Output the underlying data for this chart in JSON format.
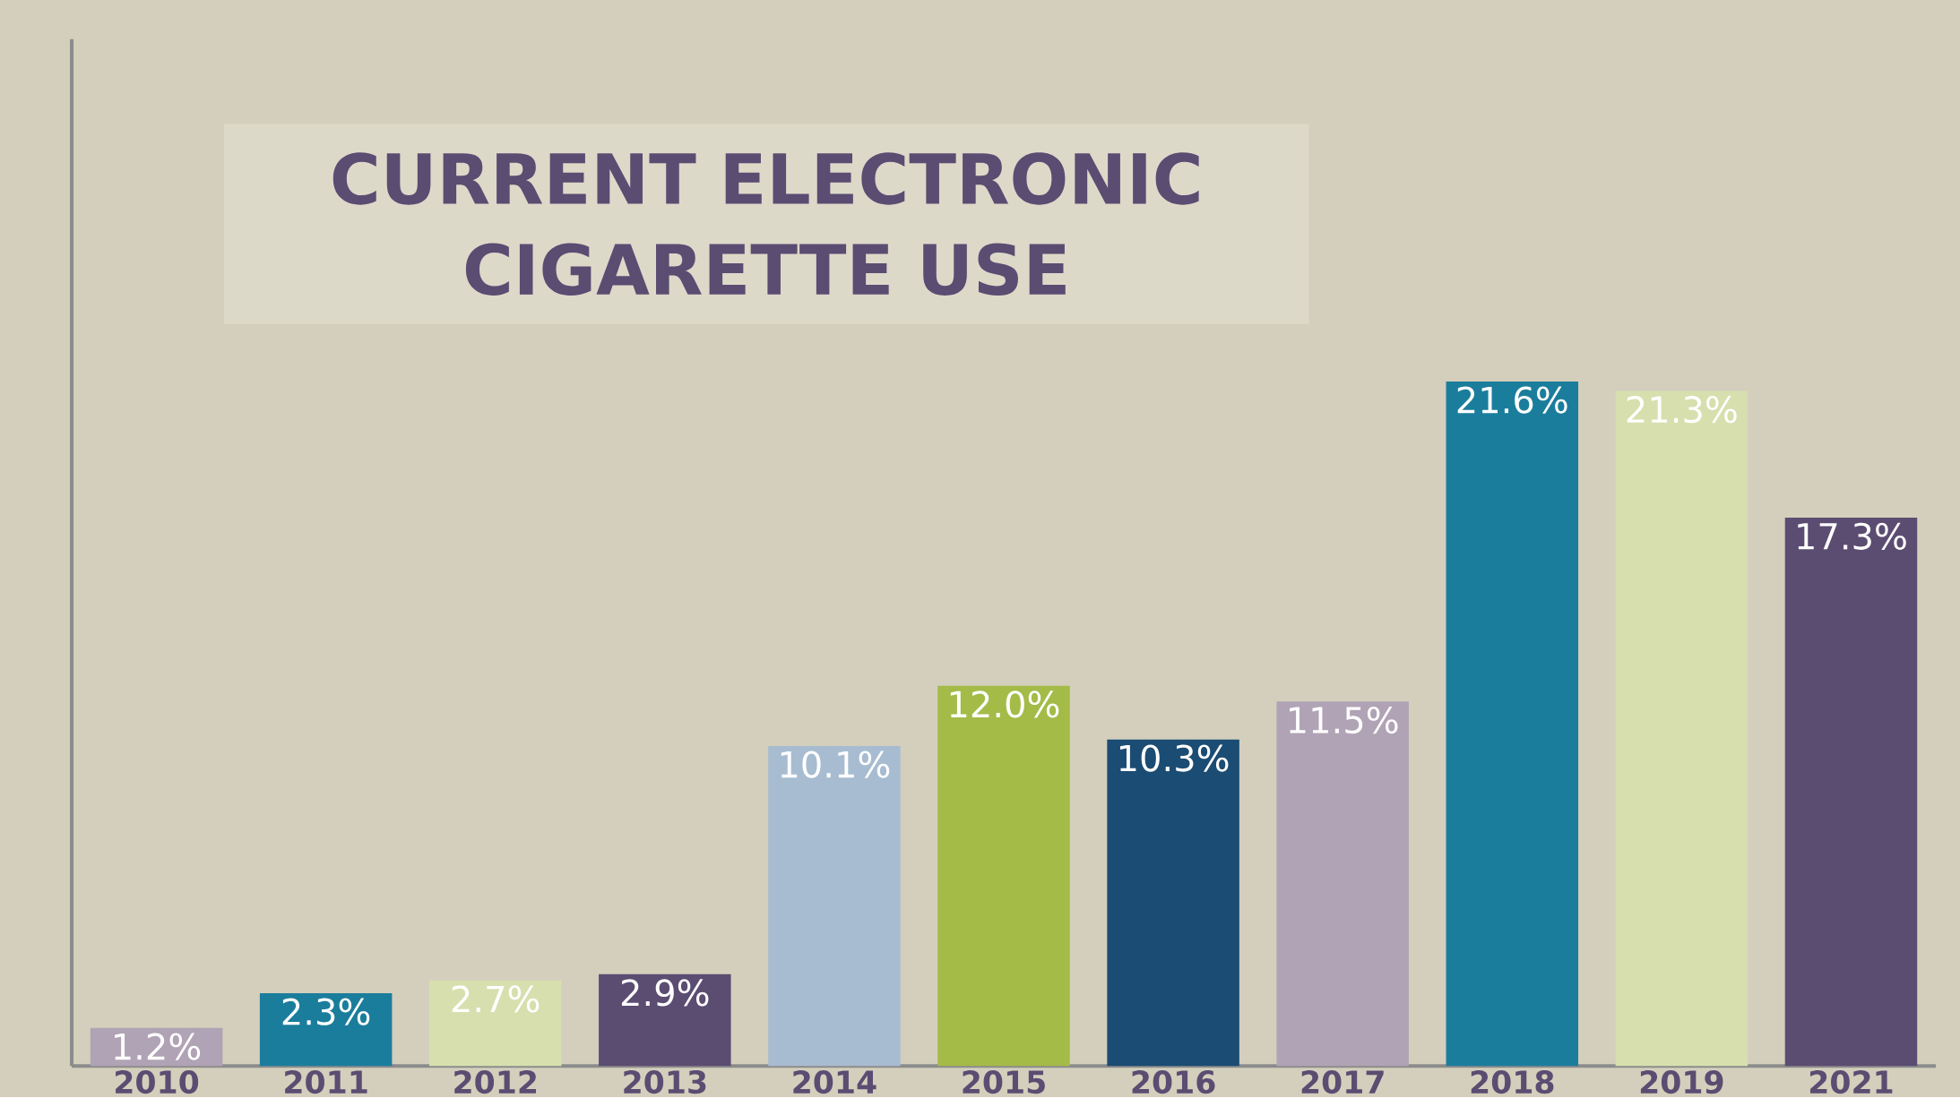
{
  "chart_data": {
    "type": "bar",
    "title": "CURRENT ELECTRONIC CIGARETTE USE",
    "categories": [
      "2010",
      "2011",
      "2012",
      "2013",
      "2014",
      "2015",
      "2016",
      "2017",
      "2018",
      "2019",
      "2021"
    ],
    "values": [
      1.2,
      2.3,
      2.7,
      2.9,
      10.1,
      12.0,
      10.3,
      11.5,
      21.6,
      21.3,
      17.3
    ],
    "value_labels": [
      "1.2%",
      "2.3%",
      "2.7%",
      "2.9%",
      "10.1%",
      "12.0%",
      "10.3%",
      "11.5%",
      "21.6%",
      "21.3%",
      "17.3%"
    ],
    "colors": [
      "#b0a3b5",
      "#1b7d9c",
      "#d7dfae",
      "#5b4c72",
      "#a7bcd1",
      "#a4bb48",
      "#1b4c73",
      "#b0a3b5",
      "#1b7d9c",
      "#d7dfae",
      "#5b4c72"
    ],
    "tick_labels": "x"
  }
}
